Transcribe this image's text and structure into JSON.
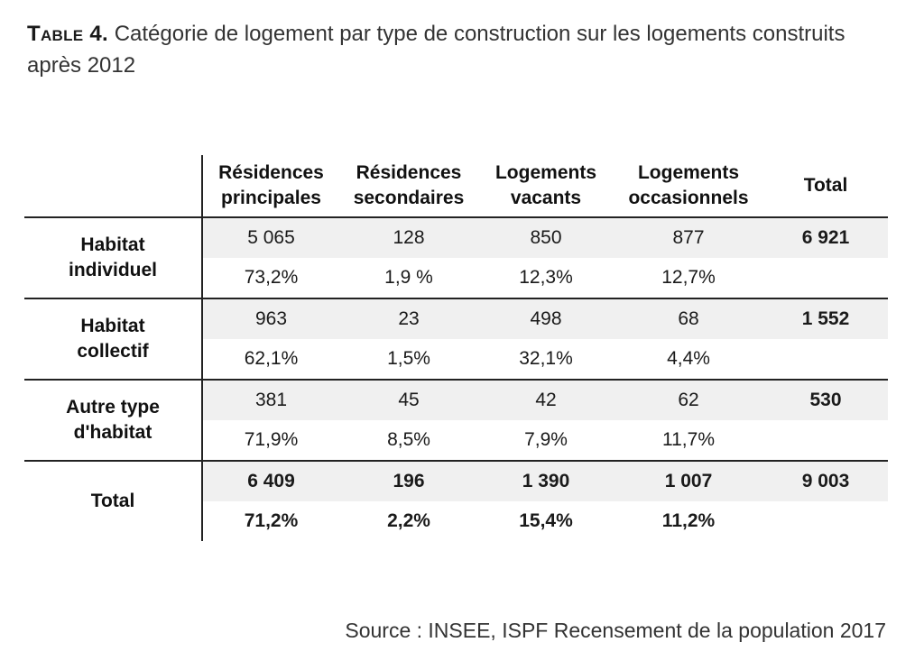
{
  "caption": {
    "label": "Table 4.",
    "text": " Catégorie de logement par type de construction sur les logements construits après 2012"
  },
  "table": {
    "headers": {
      "col1_line1": "Résidences",
      "col1_line2": "principales",
      "col2_line1": "Résidences",
      "col2_line2": "secondaires",
      "col3_line1": "Logements",
      "col3_line2": "vacants",
      "col4_line1": "Logements",
      "col4_line2": "occasionnels",
      "col5": "Total"
    },
    "rows": [
      {
        "label_line1": "Habitat",
        "label_line2": "individuel",
        "values": [
          "5 065",
          "128",
          "850",
          "877",
          "6 921"
        ],
        "percents": [
          "73,2%",
          "1,9 %",
          "12,3%",
          "12,7%",
          ""
        ]
      },
      {
        "label_line1": "Habitat",
        "label_line2": "collectif",
        "values": [
          "963",
          "23",
          "498",
          "68",
          "1 552"
        ],
        "percents": [
          "62,1%",
          "1,5%",
          "32,1%",
          "4,4%",
          ""
        ]
      },
      {
        "label_line1": "Autre type",
        "label_line2": "d'habitat",
        "values": [
          "381",
          "45",
          "42",
          "62",
          "530"
        ],
        "percents": [
          "71,9%",
          "8,5%",
          "7,9%",
          "11,7%",
          ""
        ]
      },
      {
        "label_line1": "Total",
        "label_line2": "",
        "values": [
          "6 409",
          "196",
          "1 390",
          "1 007",
          "9 003"
        ],
        "percents": [
          "71,2%",
          "2,2%",
          "15,4%",
          "11,2%",
          ""
        ]
      }
    ]
  },
  "source": "Source : INSEE, ISPF Recensement de la population 2017"
}
